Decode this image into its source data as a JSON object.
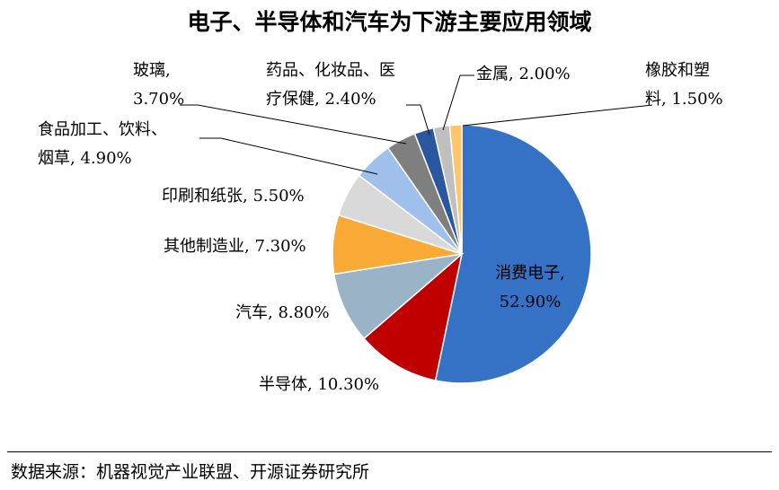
{
  "chart_data": {
    "type": "pie",
    "title": "电子、半导体和汽车为下游主要应用领域",
    "slices": [
      {
        "name": "消费电子",
        "value": 52.9,
        "label": [
          "消费电子,",
          "52.90%"
        ],
        "color": "#3572C6"
      },
      {
        "name": "半导体",
        "value": 10.3,
        "label": [
          "半导体, 10.30%"
        ],
        "color": "#C00000"
      },
      {
        "name": "汽车",
        "value": 8.8,
        "label": [
          "汽车, 8.80%"
        ],
        "color": "#9BB3C6"
      },
      {
        "name": "其他制造业",
        "value": 7.3,
        "label": [
          "其他制造业, 7.30%"
        ],
        "color": "#F8A936"
      },
      {
        "name": "印刷和纸张",
        "value": 5.5,
        "label": [
          "印刷和纸张, 5.50%"
        ],
        "color": "#D9D9D9"
      },
      {
        "name": "食品加工、饮料、烟草",
        "value": 4.9,
        "label": [
          "食品加工、饮料、",
          "烟草, 4.90%"
        ],
        "color": "#A0C0EC"
      },
      {
        "name": "玻璃",
        "value": 3.7,
        "label": [
          "玻璃,",
          "3.70%"
        ],
        "color": "#7F7F7F"
      },
      {
        "name": "药品、化妆品、医疗保健",
        "value": 2.4,
        "label": [
          "药品、化妆品、医",
          "疗保健, 2.40%"
        ],
        "color": "#2A58A0"
      },
      {
        "name": "金属",
        "value": 2.0,
        "label": [
          "金属, 2.00%"
        ],
        "color": "#BFBFBF"
      },
      {
        "name": "橡胶和塑料",
        "value": 1.5,
        "label": [
          "橡胶和塑",
          "料, 1.50%"
        ],
        "color": "#FFC56B"
      }
    ]
  },
  "footer": {
    "source": "数据来源：机器视觉产业联盟、开源证券研究所"
  }
}
